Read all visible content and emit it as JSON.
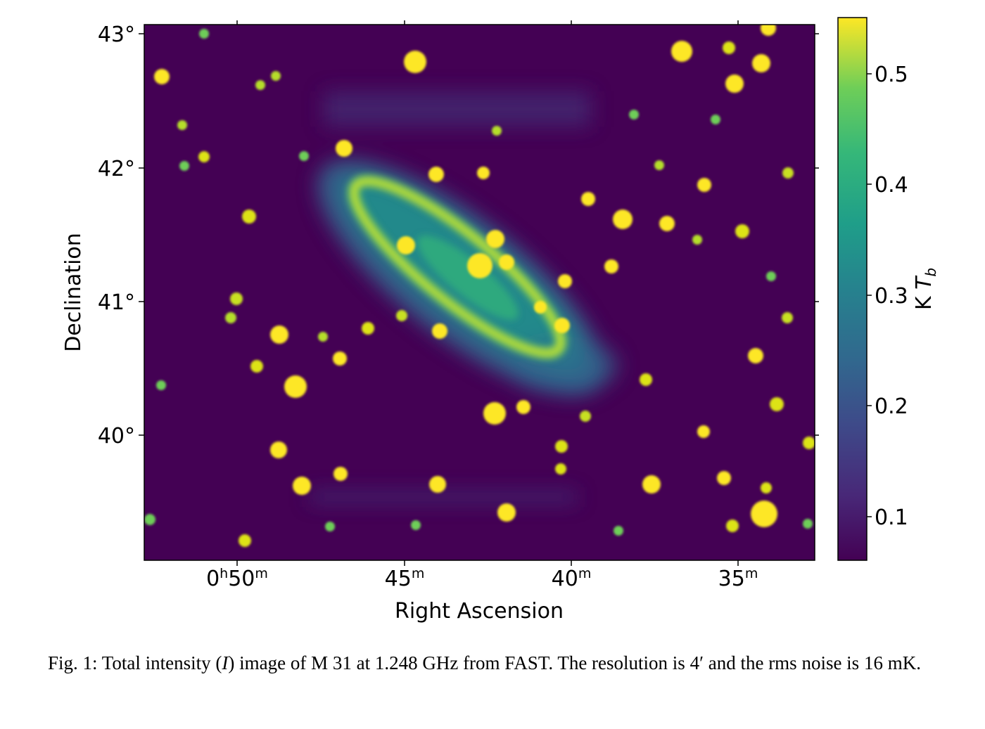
{
  "chart_data": {
    "type": "heatmap",
    "title": "",
    "xlabel": "Right Ascension",
    "ylabel": "Declination",
    "x_ticks": [
      {
        "h": "0",
        "m": "50"
      },
      {
        "h": "",
        "m": "45"
      },
      {
        "h": "",
        "m": "40"
      },
      {
        "h": "",
        "m": "35"
      }
    ],
    "y_ticks": [
      "43°",
      "42°",
      "41°",
      "40°"
    ],
    "colorbar": {
      "label": "K",
      "label_symbol": "T",
      "label_subscript": "b",
      "ticks": [
        "0.5",
        "0.4",
        "0.3",
        "0.2",
        "0.1"
      ],
      "range": [
        0.06,
        0.55
      ],
      "colormap": "viridis"
    },
    "background_color": "#440154",
    "object": "M 31 (Andromeda Galaxy)",
    "grid": false
  },
  "caption": {
    "label": "Fig. 1:",
    "text_before": "Total intensity (",
    "symbol": "I",
    "text_middle": ") image of M 31 at 1.248 GHz from FAST. The resolution is ",
    "resolution": "4′",
    "text_after": " and the rms noise is 16 mK."
  }
}
